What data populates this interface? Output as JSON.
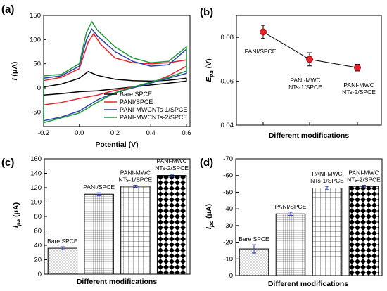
{
  "panel_labels": [
    "(a)",
    "(b)",
    "(c)",
    "(d)"
  ],
  "chart_data": [
    {
      "panel": "(a)",
      "type": "line",
      "xlabel": "Potential (V)",
      "ylabel": "I (μA)",
      "ylabel_italic": "I",
      "ylabel_unit": " (μA)",
      "xlim": [
        -0.2,
        0.62
      ],
      "ylim": [
        -80,
        150
      ],
      "xticks": [
        -0.2,
        0.0,
        0.2,
        0.4,
        0.6
      ],
      "xtick_labels": [
        "-0.2",
        "0.0",
        "0.2",
        "0.4",
        "0.6"
      ],
      "yticks": [
        -50,
        0,
        50,
        100,
        150
      ],
      "ytick_labels": [
        "-50",
        "0",
        "50",
        "100",
        "150"
      ],
      "legend_position": "lower-right",
      "series": [
        {
          "name": "Bare SPCE",
          "color": "#000000",
          "forward": [
            [
              -0.2,
              2
            ],
            [
              -0.1,
              8
            ],
            [
              0.0,
              20
            ],
            [
              0.05,
              34
            ],
            [
              0.1,
              26
            ],
            [
              0.2,
              18
            ],
            [
              0.3,
              15
            ],
            [
              0.4,
              14
            ],
            [
              0.5,
              16
            ],
            [
              0.6,
              20
            ]
          ],
          "reverse": [
            [
              0.6,
              14
            ],
            [
              0.5,
              10
            ],
            [
              0.4,
              6
            ],
            [
              0.3,
              2
            ],
            [
              0.2,
              -2
            ],
            [
              0.1,
              -6
            ],
            [
              0.0,
              -8
            ],
            [
              -0.1,
              -12
            ],
            [
              -0.2,
              -15
            ]
          ]
        },
        {
          "name": "PANI/SPCE",
          "color": "#e8212a",
          "forward": [
            [
              -0.2,
              15
            ],
            [
              -0.1,
              22
            ],
            [
              0.0,
              40
            ],
            [
              0.05,
              95
            ],
            [
              0.08,
              112
            ],
            [
              0.12,
              90
            ],
            [
              0.2,
              62
            ],
            [
              0.3,
              52
            ],
            [
              0.4,
              50
            ],
            [
              0.5,
              52
            ],
            [
              0.6,
              58
            ]
          ],
          "reverse": [
            [
              0.6,
              45
            ],
            [
              0.5,
              25
            ],
            [
              0.4,
              10
            ],
            [
              0.3,
              2
            ],
            [
              0.2,
              -5
            ],
            [
              0.1,
              -15
            ],
            [
              0.0,
              -22
            ],
            [
              -0.1,
              -30
            ],
            [
              -0.2,
              -35
            ]
          ]
        },
        {
          "name": "PANI-MWCNTs-1/SPCE",
          "color": "#2a3fb0",
          "forward": [
            [
              -0.2,
              20
            ],
            [
              -0.1,
              25
            ],
            [
              0.0,
              45
            ],
            [
              0.04,
              100
            ],
            [
              0.07,
              122
            ],
            [
              0.1,
              108
            ],
            [
              0.2,
              75
            ],
            [
              0.3,
              55
            ],
            [
              0.4,
              45
            ],
            [
              0.5,
              48
            ],
            [
              0.6,
              80
            ]
          ],
          "reverse": [
            [
              0.6,
              30
            ],
            [
              0.5,
              20
            ],
            [
              0.4,
              10
            ],
            [
              0.3,
              0
            ],
            [
              0.2,
              -10
            ],
            [
              0.1,
              -25
            ],
            [
              0.0,
              -48
            ],
            [
              -0.1,
              -60
            ],
            [
              -0.2,
              -68
            ]
          ]
        },
        {
          "name": "PANI-MWCNTs-2/SPCE",
          "color": "#1f9a35",
          "forward": [
            [
              -0.2,
              25
            ],
            [
              -0.1,
              28
            ],
            [
              0.0,
              50
            ],
            [
              0.04,
              115
            ],
            [
              0.07,
              137
            ],
            [
              0.1,
              120
            ],
            [
              0.2,
              85
            ],
            [
              0.3,
              62
            ],
            [
              0.4,
              52
            ],
            [
              0.5,
              55
            ],
            [
              0.6,
              85
            ]
          ],
          "reverse": [
            [
              0.6,
              35
            ],
            [
              0.5,
              22
            ],
            [
              0.4,
              12
            ],
            [
              0.3,
              2
            ],
            [
              0.2,
              -10
            ],
            [
              0.1,
              -30
            ],
            [
              0.0,
              -52
            ],
            [
              -0.1,
              -62
            ],
            [
              -0.2,
              -72
            ]
          ]
        }
      ]
    },
    {
      "panel": "(b)",
      "type": "scatter",
      "xlabel": "Different modifications",
      "ylabel": "E",
      "ylabel_sub": "pa",
      "ylabel_unit": " (V)",
      "ylim": [
        0.04,
        0.09
      ],
      "yticks": [
        0.04,
        0.06,
        0.08
      ],
      "ytick_labels": [
        "0.04",
        "0.06",
        "0.08"
      ],
      "categories": [
        "PANI/SPCE",
        "PANI-MWCNTs-1/SPCE",
        "PANI-MWCNTs-2/SPCE"
      ],
      "point_labels": [
        [
          "PANI/SPCE"
        ],
        [
          "PANI-MWC",
          "NTs-1/SPCE"
        ],
        [
          "PANI-MWC",
          "NTs-2/SPCE"
        ]
      ],
      "values": [
        0.0825,
        0.07,
        0.0662
      ],
      "errors": [
        0.003,
        0.003,
        0.0015
      ],
      "marker_color": "#e8212a"
    },
    {
      "panel": "(c)",
      "type": "bar",
      "xlabel": "Different modifications",
      "ylabel": "I",
      "ylabel_sub": "pa",
      "ylabel_unit": " (μA)",
      "ylim": [
        0,
        160
      ],
      "yticks": [
        0,
        20,
        40,
        60,
        80,
        100,
        120,
        140,
        160
      ],
      "ytick_labels": [
        "0",
        "20",
        "40",
        "60",
        "80",
        "100",
        "120",
        "140",
        "160"
      ],
      "categories": [
        "Bare SPCE",
        "PANI/SPCE",
        "PANI-MWCNTs-1/SPCE",
        "PANI-MWCNTs-2/SPCE"
      ],
      "bar_labels": [
        [
          "Bare SPCE"
        ],
        [
          "PANI/SPCE"
        ],
        [
          "PANI-MWC",
          "NTs-1/SPCE"
        ],
        [
          "PANI-MWC",
          "NTs-2/SPCE"
        ]
      ],
      "values": [
        36,
        111,
        122,
        137
      ],
      "errors": [
        2,
        2,
        1.5,
        1.5
      ],
      "patterns": [
        "dots",
        "fine-grid",
        "brick",
        "diamond"
      ]
    },
    {
      "panel": "(d)",
      "type": "bar",
      "xlabel": "Different modifications",
      "ylabel": "I",
      "ylabel_sub": "pc",
      "ylabel_unit": " (μA)",
      "ylim": [
        0,
        -70
      ],
      "yticks": [
        0,
        -10,
        -20,
        -30,
        -40,
        -50,
        -60,
        -70
      ],
      "ytick_labels": [
        "0",
        "-10",
        "-20",
        "-30",
        "-40",
        "-50",
        "-60",
        "-70"
      ],
      "categories": [
        "Bare SPCE",
        "PANI/SPCE",
        "PANI-MWCNTs-1/SPCE",
        "PANI-MWCNTs-2/SPCE"
      ],
      "bar_labels": [
        [
          "Bare SPCE"
        ],
        [
          "PANI/SPCE"
        ],
        [
          "PANI-MWC",
          "NTs-1/SPCE"
        ],
        [
          "PANI-MWC",
          "NTs-2/SPCE"
        ]
      ],
      "values": [
        -16,
        -37,
        -52.5,
        -53.5
      ],
      "errors": [
        2.5,
        1,
        1,
        0.7
      ],
      "patterns": [
        "dots",
        "fine-grid",
        "brick",
        "diamond"
      ]
    }
  ]
}
